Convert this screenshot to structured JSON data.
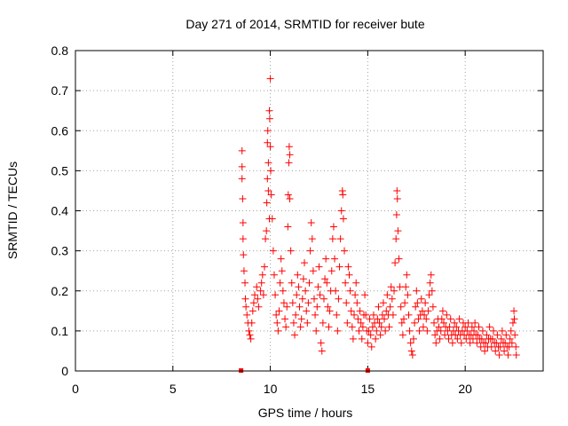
{
  "chart_data": {
    "type": "scatter",
    "title": "Day 271 of 2014, SRMTID for receiver bute",
    "xlabel": "GPS time / hours",
    "ylabel": "SRMTID / TECUs",
    "xlim": [
      0,
      24
    ],
    "ylim": [
      0,
      0.8
    ],
    "xticks": [
      0,
      5,
      10,
      15,
      20
    ],
    "yticks": [
      0,
      0.1,
      0.2,
      0.3,
      0.4,
      0.5,
      0.6,
      0.7,
      0.8
    ],
    "xtick_labels": [
      "0",
      "5",
      "10",
      "15",
      "20"
    ],
    "ytick_labels": [
      "0",
      "0.1",
      "0.2",
      "0.3",
      "0.4",
      "0.5",
      "0.6",
      "0.7",
      "0.8"
    ],
    "grid": true,
    "color": "#ff0000",
    "marker": "plus",
    "series": [
      {
        "name": "SRMTID",
        "points": [
          [
            8.5,
            0.0
          ],
          [
            15.0,
            0.0
          ],
          [
            8.55,
            0.55
          ],
          [
            8.55,
            0.51
          ],
          [
            8.55,
            0.48
          ],
          [
            8.58,
            0.43
          ],
          [
            8.6,
            0.37
          ],
          [
            8.6,
            0.33
          ],
          [
            8.62,
            0.29
          ],
          [
            8.65,
            0.25
          ],
          [
            8.7,
            0.22
          ],
          [
            8.72,
            0.18
          ],
          [
            8.75,
            0.16
          ],
          [
            8.8,
            0.14
          ],
          [
            8.85,
            0.12
          ],
          [
            8.9,
            0.1
          ],
          [
            8.95,
            0.09
          ],
          [
            9.0,
            0.08
          ],
          [
            9.05,
            0.12
          ],
          [
            9.1,
            0.15
          ],
          [
            9.15,
            0.17
          ],
          [
            9.2,
            0.19
          ],
          [
            9.3,
            0.21
          ],
          [
            9.35,
            0.18
          ],
          [
            9.4,
            0.16
          ],
          [
            9.5,
            0.2
          ],
          [
            9.55,
            0.22
          ],
          [
            9.6,
            0.24
          ],
          [
            9.65,
            0.19
          ],
          [
            9.7,
            0.26
          ],
          [
            9.75,
            0.33
          ],
          [
            9.8,
            0.35
          ],
          [
            9.82,
            0.42
          ],
          [
            9.85,
            0.48
          ],
          [
            9.85,
            0.57
          ],
          [
            9.87,
            0.6
          ],
          [
            9.9,
            0.52
          ],
          [
            9.9,
            0.45
          ],
          [
            9.95,
            0.38
          ],
          [
            9.95,
            0.65
          ],
          [
            9.97,
            0.63
          ],
          [
            10.0,
            0.73
          ],
          [
            10.0,
            0.56
          ],
          [
            10.02,
            0.5
          ],
          [
            10.05,
            0.44
          ],
          [
            10.1,
            0.38
          ],
          [
            10.15,
            0.3
          ],
          [
            10.2,
            0.24
          ],
          [
            10.25,
            0.19
          ],
          [
            10.3,
            0.14
          ],
          [
            10.35,
            0.12
          ],
          [
            10.4,
            0.1
          ],
          [
            10.45,
            0.15
          ],
          [
            10.5,
            0.22
          ],
          [
            10.55,
            0.28
          ],
          [
            10.6,
            0.25
          ],
          [
            10.65,
            0.2
          ],
          [
            10.7,
            0.17
          ],
          [
            10.75,
            0.13
          ],
          [
            10.8,
            0.11
          ],
          [
            10.85,
            0.16
          ],
          [
            10.9,
            0.36
          ],
          [
            10.92,
            0.44
          ],
          [
            10.95,
            0.52
          ],
          [
            10.97,
            0.56
          ],
          [
            11.0,
            0.54
          ],
          [
            11.0,
            0.43
          ],
          [
            11.05,
            0.3
          ],
          [
            11.1,
            0.22
          ],
          [
            11.15,
            0.17
          ],
          [
            11.2,
            0.12
          ],
          [
            11.25,
            0.09
          ],
          [
            11.3,
            0.14
          ],
          [
            11.35,
            0.19
          ],
          [
            11.4,
            0.24
          ],
          [
            11.45,
            0.21
          ],
          [
            11.5,
            0.16
          ],
          [
            11.55,
            0.11
          ],
          [
            11.6,
            0.13
          ],
          [
            11.65,
            0.18
          ],
          [
            11.7,
            0.23
          ],
          [
            11.75,
            0.27
          ],
          [
            11.8,
            0.2
          ],
          [
            11.85,
            0.15
          ],
          [
            11.9,
            0.12
          ],
          [
            11.95,
            0.17
          ],
          [
            12.0,
            0.22
          ],
          [
            12.05,
            0.3
          ],
          [
            12.1,
            0.37
          ],
          [
            12.15,
            0.33
          ],
          [
            12.2,
            0.25
          ],
          [
            12.25,
            0.18
          ],
          [
            12.3,
            0.14
          ],
          [
            12.35,
            0.1
          ],
          [
            12.4,
            0.16
          ],
          [
            12.45,
            0.21
          ],
          [
            12.5,
            0.26
          ],
          [
            12.55,
            0.19
          ],
          [
            12.6,
            0.07
          ],
          [
            12.65,
            0.05
          ],
          [
            12.7,
            0.12
          ],
          [
            12.75,
            0.18
          ],
          [
            12.8,
            0.23
          ],
          [
            12.85,
            0.28
          ],
          [
            12.9,
            0.22
          ],
          [
            12.95,
            0.16
          ],
          [
            13.0,
            0.11
          ],
          [
            13.05,
            0.15
          ],
          [
            13.1,
            0.2
          ],
          [
            13.15,
            0.25
          ],
          [
            13.2,
            0.33
          ],
          [
            13.25,
            0.36
          ],
          [
            13.3,
            0.28
          ],
          [
            13.35,
            0.2
          ],
          [
            13.4,
            0.14
          ],
          [
            13.45,
            0.1
          ],
          [
            13.5,
            0.18
          ],
          [
            13.55,
            0.26
          ],
          [
            13.6,
            0.33
          ],
          [
            13.65,
            0.4
          ],
          [
            13.7,
            0.45
          ],
          [
            13.72,
            0.44
          ],
          [
            13.75,
            0.38
          ],
          [
            13.8,
            0.3
          ],
          [
            13.85,
            0.22
          ],
          [
            13.9,
            0.17
          ],
          [
            13.95,
            0.12
          ],
          [
            14.0,
            0.26
          ],
          [
            14.05,
            0.24
          ],
          [
            14.1,
            0.2
          ],
          [
            14.15,
            0.15
          ],
          [
            14.2,
            0.11
          ],
          [
            14.25,
            0.08
          ],
          [
            14.3,
            0.14
          ],
          [
            14.35,
            0.19
          ],
          [
            14.4,
            0.22
          ],
          [
            14.45,
            0.17
          ],
          [
            14.5,
            0.13
          ],
          [
            14.55,
            0.1
          ],
          [
            14.6,
            0.15
          ],
          [
            14.65,
            0.12
          ],
          [
            14.7,
            0.08
          ],
          [
            14.75,
            0.11
          ],
          [
            14.8,
            0.14
          ],
          [
            14.85,
            0.19
          ],
          [
            14.9,
            0.14
          ],
          [
            14.95,
            0.1
          ],
          [
            15.0,
            0.07
          ],
          [
            15.05,
            0.1
          ],
          [
            15.1,
            0.13
          ],
          [
            15.15,
            0.09
          ],
          [
            15.2,
            0.06
          ],
          [
            15.25,
            0.11
          ],
          [
            15.3,
            0.14
          ],
          [
            15.35,
            0.12
          ],
          [
            15.4,
            0.08
          ],
          [
            15.45,
            0.1
          ],
          [
            15.5,
            0.13
          ],
          [
            15.55,
            0.16
          ],
          [
            15.6,
            0.12
          ],
          [
            15.65,
            0.09
          ],
          [
            15.7,
            0.11
          ],
          [
            15.75,
            0.14
          ],
          [
            15.8,
            0.17
          ],
          [
            15.85,
            0.13
          ],
          [
            15.9,
            0.1
          ],
          [
            15.95,
            0.15
          ],
          [
            16.0,
            0.19
          ],
          [
            16.05,
            0.14
          ],
          [
            16.1,
            0.11
          ],
          [
            16.15,
            0.16
          ],
          [
            16.2,
            0.21
          ],
          [
            16.25,
            0.18
          ],
          [
            16.3,
            0.14
          ],
          [
            16.35,
            0.2
          ],
          [
            16.4,
            0.27
          ],
          [
            16.45,
            0.33
          ],
          [
            16.48,
            0.39
          ],
          [
            16.5,
            0.45
          ],
          [
            16.52,
            0.43
          ],
          [
            16.55,
            0.35
          ],
          [
            16.6,
            0.28
          ],
          [
            16.65,
            0.21
          ],
          [
            16.7,
            0.16
          ],
          [
            16.75,
            0.12
          ],
          [
            16.8,
            0.09
          ],
          [
            16.85,
            0.13
          ],
          [
            16.9,
            0.17
          ],
          [
            16.95,
            0.21
          ],
          [
            17.0,
            0.24
          ],
          [
            17.05,
            0.19
          ],
          [
            17.1,
            0.14
          ],
          [
            17.15,
            0.1
          ],
          [
            17.2,
            0.07
          ],
          [
            17.25,
            0.05
          ],
          [
            17.3,
            0.04
          ],
          [
            17.35,
            0.08
          ],
          [
            17.4,
            0.12
          ],
          [
            17.45,
            0.16
          ],
          [
            17.5,
            0.2
          ],
          [
            17.55,
            0.17
          ],
          [
            17.6,
            0.13
          ],
          [
            17.65,
            0.1
          ],
          [
            17.7,
            0.14
          ],
          [
            17.75,
            0.18
          ],
          [
            17.8,
            0.15
          ],
          [
            17.85,
            0.11
          ],
          [
            17.9,
            0.14
          ],
          [
            17.95,
            0.17
          ],
          [
            18.0,
            0.13
          ],
          [
            18.05,
            0.1
          ],
          [
            18.1,
            0.15
          ],
          [
            18.15,
            0.19
          ],
          [
            18.2,
            0.22
          ],
          [
            18.25,
            0.24
          ],
          [
            18.3,
            0.2
          ],
          [
            18.35,
            0.16
          ],
          [
            18.4,
            0.12
          ],
          [
            18.45,
            0.09
          ],
          [
            18.5,
            0.07
          ],
          [
            18.55,
            0.1
          ],
          [
            18.6,
            0.13
          ],
          [
            18.65,
            0.11
          ],
          [
            18.7,
            0.08
          ],
          [
            18.75,
            0.1
          ],
          [
            18.8,
            0.13
          ],
          [
            18.85,
            0.15
          ],
          [
            18.9,
            0.12
          ],
          [
            18.95,
            0.09
          ],
          [
            19.0,
            0.11
          ],
          [
            19.05,
            0.14
          ],
          [
            19.1,
            0.1
          ],
          [
            19.15,
            0.08
          ],
          [
            19.2,
            0.11
          ],
          [
            19.25,
            0.13
          ],
          [
            19.3,
            0.09
          ],
          [
            19.35,
            0.07
          ],
          [
            19.4,
            0.1
          ],
          [
            19.45,
            0.12
          ],
          [
            19.5,
            0.09
          ],
          [
            19.55,
            0.11
          ],
          [
            19.6,
            0.08
          ],
          [
            19.65,
            0.1
          ],
          [
            19.7,
            0.13
          ],
          [
            19.75,
            0.09
          ],
          [
            19.8,
            0.07
          ],
          [
            19.85,
            0.1
          ],
          [
            19.9,
            0.12
          ],
          [
            19.95,
            0.09
          ],
          [
            20.0,
            0.11
          ],
          [
            20.05,
            0.08
          ],
          [
            20.1,
            0.1
          ],
          [
            20.15,
            0.12
          ],
          [
            20.2,
            0.09
          ],
          [
            20.25,
            0.07
          ],
          [
            20.3,
            0.09
          ],
          [
            20.35,
            0.11
          ],
          [
            20.4,
            0.08
          ],
          [
            20.45,
            0.1
          ],
          [
            20.5,
            0.12
          ],
          [
            20.55,
            0.09
          ],
          [
            20.6,
            0.07
          ],
          [
            20.65,
            0.09
          ],
          [
            20.7,
            0.11
          ],
          [
            20.75,
            0.08
          ],
          [
            20.8,
            0.06
          ],
          [
            20.85,
            0.08
          ],
          [
            20.9,
            0.1
          ],
          [
            20.95,
            0.07
          ],
          [
            21.0,
            0.05
          ],
          [
            21.05,
            0.07
          ],
          [
            21.1,
            0.09
          ],
          [
            21.15,
            0.06
          ],
          [
            21.2,
            0.08
          ],
          [
            21.25,
            0.11
          ],
          [
            21.3,
            0.08
          ],
          [
            21.35,
            0.06
          ],
          [
            21.4,
            0.08
          ],
          [
            21.45,
            0.1
          ],
          [
            21.5,
            0.07
          ],
          [
            21.55,
            0.05
          ],
          [
            21.6,
            0.07
          ],
          [
            21.65,
            0.09
          ],
          [
            21.7,
            0.06
          ],
          [
            21.75,
            0.04
          ],
          [
            21.8,
            0.06
          ],
          [
            21.85,
            0.08
          ],
          [
            21.9,
            0.1
          ],
          [
            21.95,
            0.07
          ],
          [
            22.0,
            0.05
          ],
          [
            22.05,
            0.07
          ],
          [
            22.1,
            0.09
          ],
          [
            22.15,
            0.06
          ],
          [
            22.2,
            0.04
          ],
          [
            22.25,
            0.06
          ],
          [
            22.3,
            0.08
          ],
          [
            22.35,
            0.1
          ],
          [
            22.4,
            0.07
          ],
          [
            22.45,
            0.12
          ],
          [
            22.5,
            0.15
          ],
          [
            22.52,
            0.13
          ],
          [
            22.55,
            0.09
          ],
          [
            22.6,
            0.06
          ],
          [
            22.62,
            0.04
          ]
        ]
      }
    ]
  }
}
